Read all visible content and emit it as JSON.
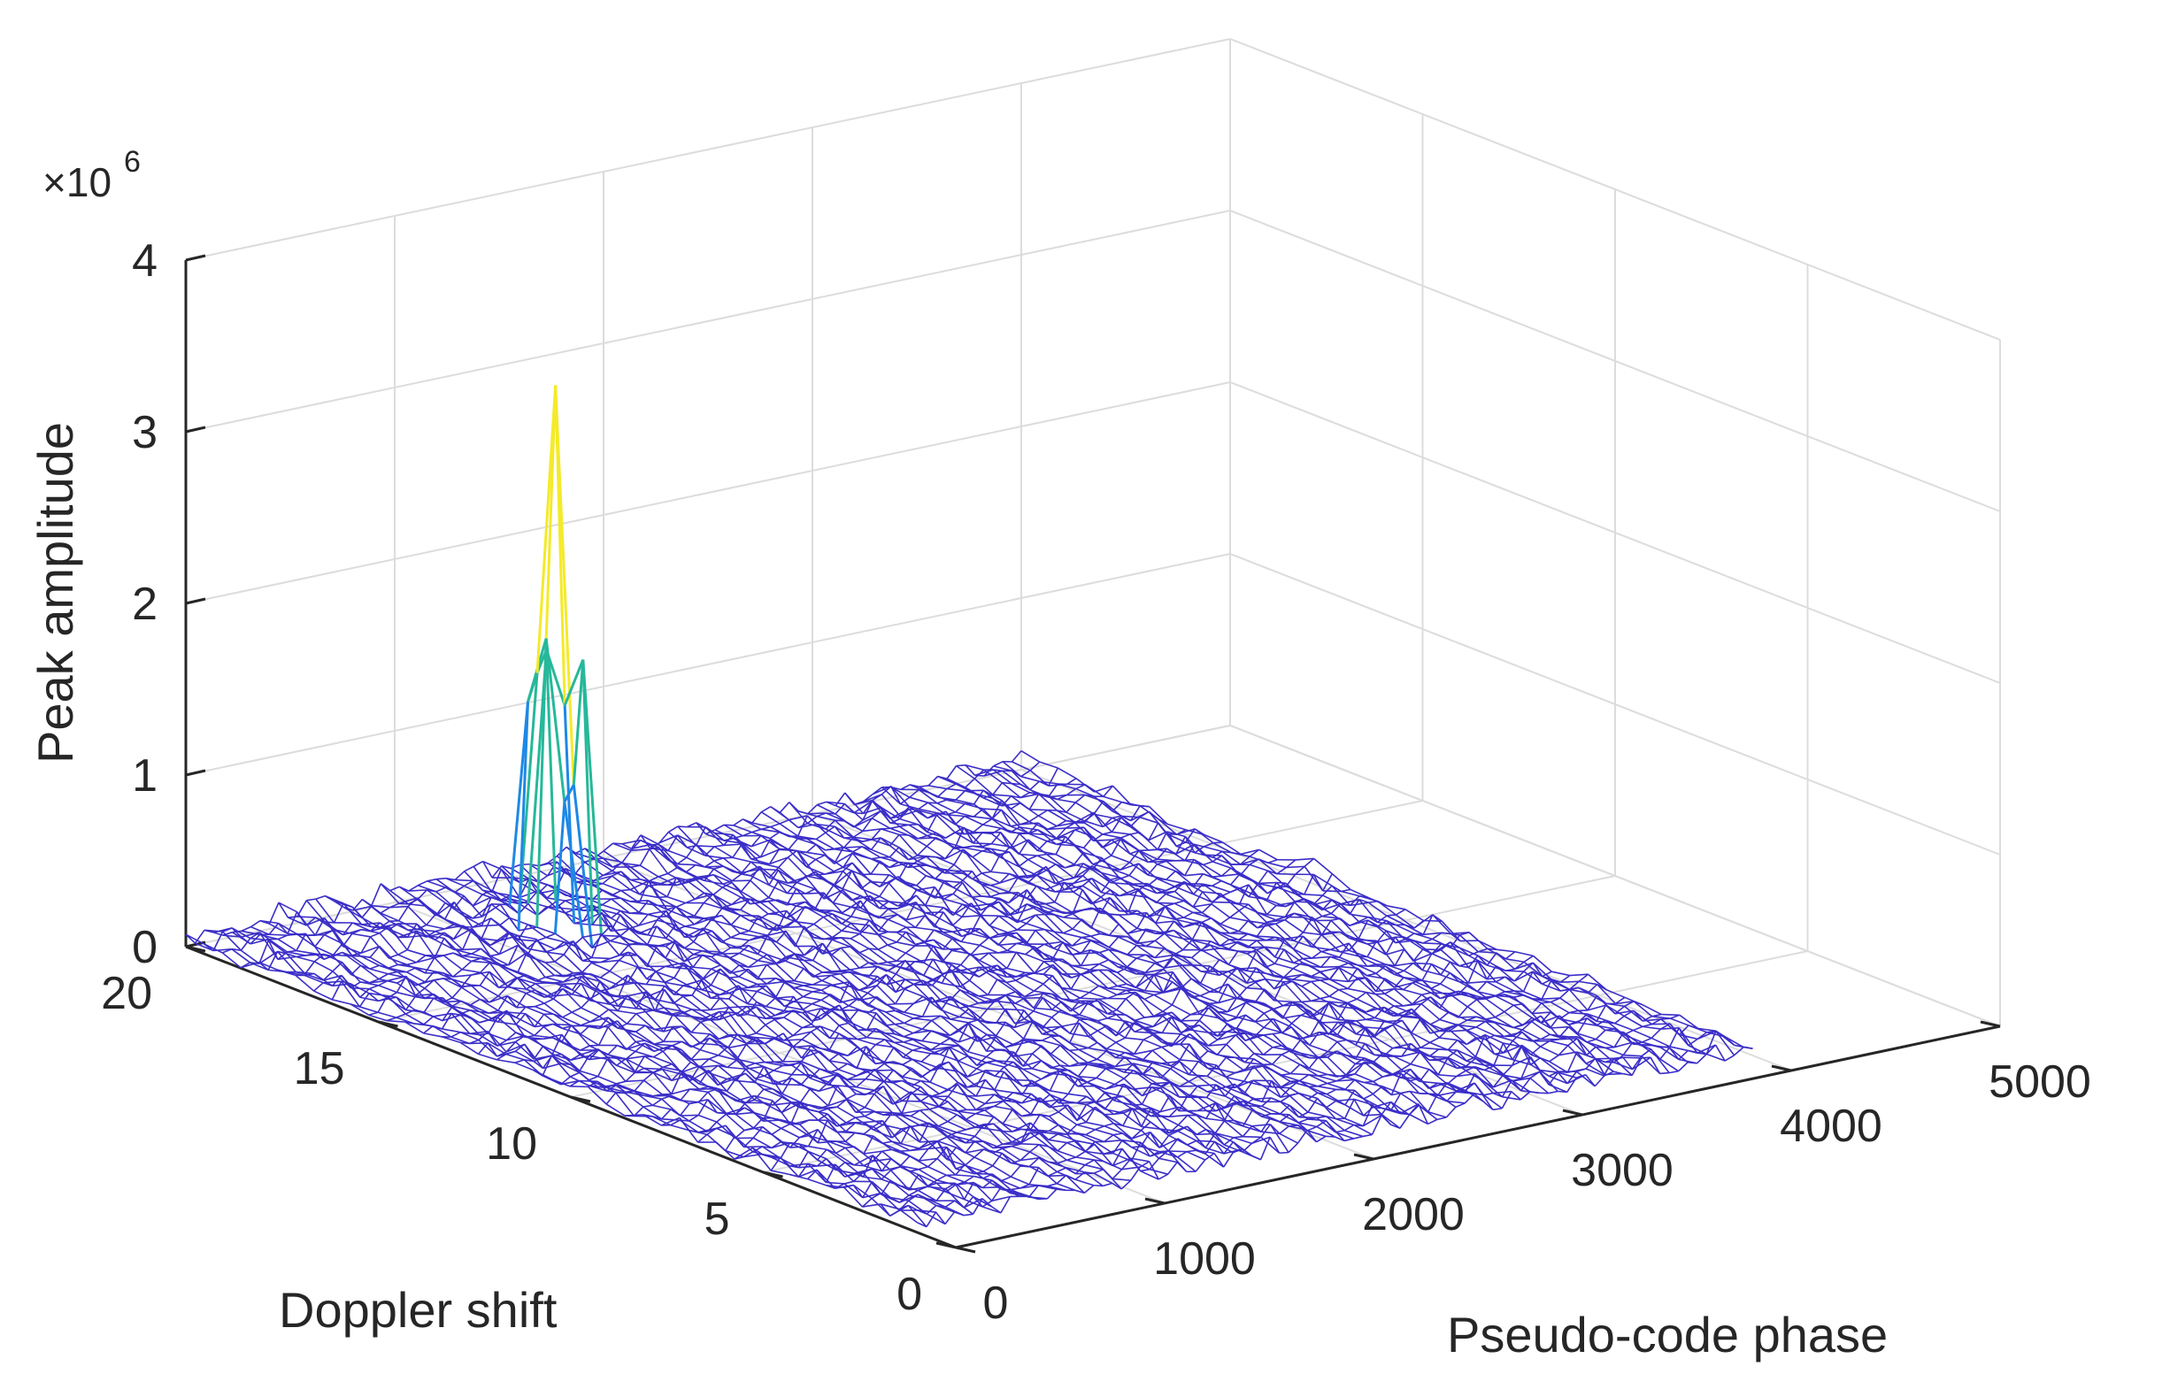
{
  "chart_data": {
    "type": "surface-mesh-3d",
    "xlabel": "Pseudo-code phase",
    "ylabel": "Doppler shift",
    "zlabel": "Peak amplitude",
    "z_multiplier_text": "×10",
    "z_multiplier_exponent": "6",
    "xlim": [
      0,
      5000
    ],
    "ylim": [
      0,
      20
    ],
    "zlim": [
      0,
      4
    ],
    "x_ticks": [
      0,
      1000,
      2000,
      3000,
      4000,
      5000
    ],
    "y_ticks": [
      0,
      5,
      10,
      15,
      20
    ],
    "z_ticks": [
      0,
      1,
      2,
      3,
      4
    ],
    "surface": {
      "x_range": [
        0,
        4000
      ],
      "y_range": [
        1,
        20
      ],
      "noise_floor_max": 0.15,
      "peak": {
        "x": 1250,
        "y": 17,
        "z": 3.2
      }
    },
    "grid": true,
    "colormap": "parula",
    "colors": {
      "low": "#3b2ec8",
      "mid": "#1e88e5",
      "teal": "#26b89a",
      "high": "#f4ea2a",
      "grid": "#dcdcdc",
      "axis": "#262626"
    }
  }
}
